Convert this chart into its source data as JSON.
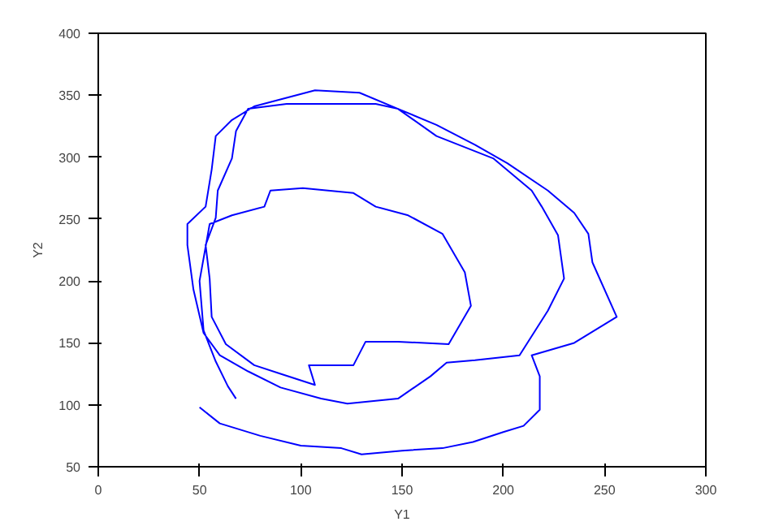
{
  "chart_data": {
    "type": "line",
    "xlabel": "Y1",
    "ylabel": "Y2",
    "xlim": [
      0,
      300
    ],
    "ylim": [
      50,
      400
    ],
    "xticks": [
      0,
      50,
      100,
      150,
      200,
      250,
      300
    ],
    "yticks": [
      50,
      100,
      150,
      200,
      250,
      300,
      350,
      400
    ],
    "grid": false,
    "line_style": "solid",
    "marker": "none",
    "x": [
      50,
      60,
      80,
      100,
      120,
      130,
      150,
      170,
      185,
      200,
      210,
      218,
      218,
      214,
      235,
      256,
      244,
      242,
      235,
      222,
      202,
      186,
      167,
      148,
      129,
      107,
      77,
      66,
      58,
      56,
      53,
      44,
      44,
      47,
      52,
      60,
      74,
      90,
      110,
      123,
      148,
      164,
      172,
      186,
      208,
      222,
      230,
      227,
      219,
      214,
      195,
      167,
      148,
      137,
      112,
      93,
      74,
      68,
      66,
      59,
      58,
      53,
      55,
      56,
      63,
      77,
      90,
      107,
      104,
      126,
      132,
      148,
      173,
      184,
      181,
      170,
      153,
      137,
      126,
      101,
      85,
      82,
      66,
      55,
      50,
      52,
      58,
      64,
      68
    ],
    "series": [
      {
        "color": "#0000ff",
        "values": [
          98,
          85,
          75,
          67,
          65,
          60,
          63,
          65,
          70,
          78,
          83,
          96,
          123,
          140,
          150,
          171,
          215,
          238,
          255,
          273,
          295,
          310,
          326,
          339,
          352,
          354,
          341,
          330,
          317,
          290,
          260,
          246,
          229,
          193,
          158,
          140,
          127,
          114,
          105,
          101,
          105,
          123,
          134,
          136,
          140,
          176,
          202,
          237,
          260,
          273,
          299,
          317,
          339,
          343,
          343,
          343,
          339,
          321,
          299,
          273,
          251,
          229,
          202,
          171,
          149,
          132,
          125,
          116,
          132,
          132,
          151,
          151,
          149,
          180,
          207,
          238,
          253,
          260,
          271,
          275,
          273,
          260,
          253,
          246,
          200,
          160,
          135,
          115,
          105
        ]
      }
    ]
  }
}
